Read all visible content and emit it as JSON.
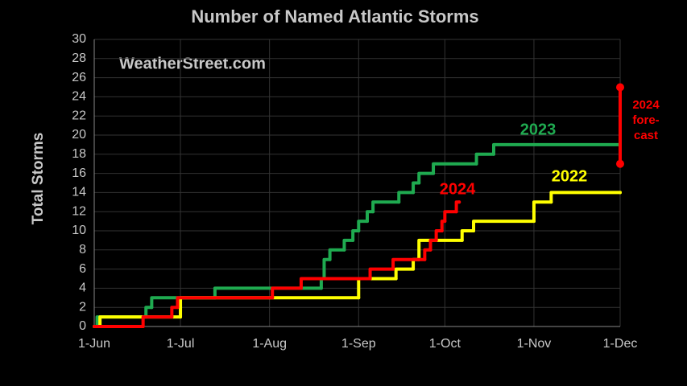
{
  "chart_data": {
    "type": "step",
    "title": "Number of Named Atlantic Storms",
    "watermark": "WeatherStreet.com",
    "y_label": "Total Storms",
    "xlim": [
      0,
      183
    ],
    "xticks": [
      {
        "value": 0,
        "label": "1-Jun"
      },
      {
        "value": 30,
        "label": "1-Jul"
      },
      {
        "value": 61,
        "label": "1-Aug"
      },
      {
        "value": 92,
        "label": "1-Sep"
      },
      {
        "value": 122,
        "label": "1-Oct"
      },
      {
        "value": 153,
        "label": "1-Nov"
      },
      {
        "value": 183,
        "label": "1-Dec"
      }
    ],
    "ylim": [
      0,
      30
    ],
    "yticks": [
      0,
      2,
      4,
      6,
      8,
      10,
      12,
      14,
      16,
      18,
      20,
      22,
      24,
      26,
      28,
      30
    ],
    "grid": true,
    "series": [
      {
        "name": "2023",
        "color": "#1faa50",
        "x": [
          0,
          1,
          18,
          20,
          42,
          79,
          80,
          82,
          87,
          90,
          92,
          95,
          97,
          106,
          111,
          113,
          118,
          133,
          139,
          183
        ],
        "values": [
          0,
          1,
          2,
          3,
          4,
          5,
          7,
          8,
          9,
          10,
          11,
          12,
          13,
          14,
          15,
          16,
          17,
          18,
          19,
          19
        ]
      },
      {
        "name": "2022",
        "color": "#ffff00",
        "x": [
          0,
          2,
          30,
          92,
          105,
          111,
          113,
          128,
          132,
          153,
          159,
          183
        ],
        "values": [
          0,
          1,
          3,
          5,
          6,
          7,
          9,
          10,
          11,
          13,
          14,
          14
        ]
      },
      {
        "name": "2024",
        "color": "#ff0000",
        "x": [
          0,
          17,
          27,
          29,
          62,
          72,
          96,
          104,
          115,
          117,
          119,
          121,
          122,
          126,
          127
        ],
        "values": [
          0,
          1,
          2,
          3,
          4,
          5,
          6,
          7,
          8,
          9,
          10,
          11,
          12,
          13,
          13
        ]
      }
    ],
    "forecast": {
      "x": 183,
      "low": 17,
      "high": 25,
      "color": "#ff0000",
      "label": [
        "2024",
        "fore-",
        "cast"
      ]
    }
  }
}
